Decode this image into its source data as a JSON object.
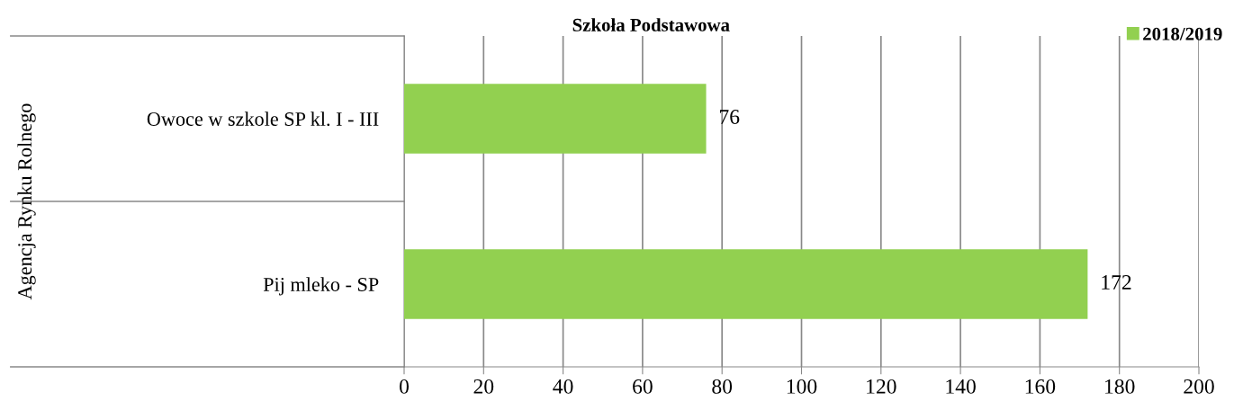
{
  "chart_data": {
    "type": "bar",
    "orientation": "horizontal",
    "title": "Szkoła Podstawowa",
    "annotations": [
      "Agencja Rynku Rolnego"
    ],
    "categories": [
      "Owoce w szkole SP kl. I - III",
      "Pij mleko - SP"
    ],
    "series": [
      {
        "name": "2018/2019",
        "color": "#92d050",
        "values": [
          76,
          172
        ]
      }
    ],
    "xlim": [
      0,
      200
    ],
    "xticks": [
      0,
      20,
      40,
      60,
      80,
      100,
      120,
      140,
      160,
      180,
      200
    ],
    "grid": "x",
    "legend": "top right",
    "data_labels": true
  }
}
